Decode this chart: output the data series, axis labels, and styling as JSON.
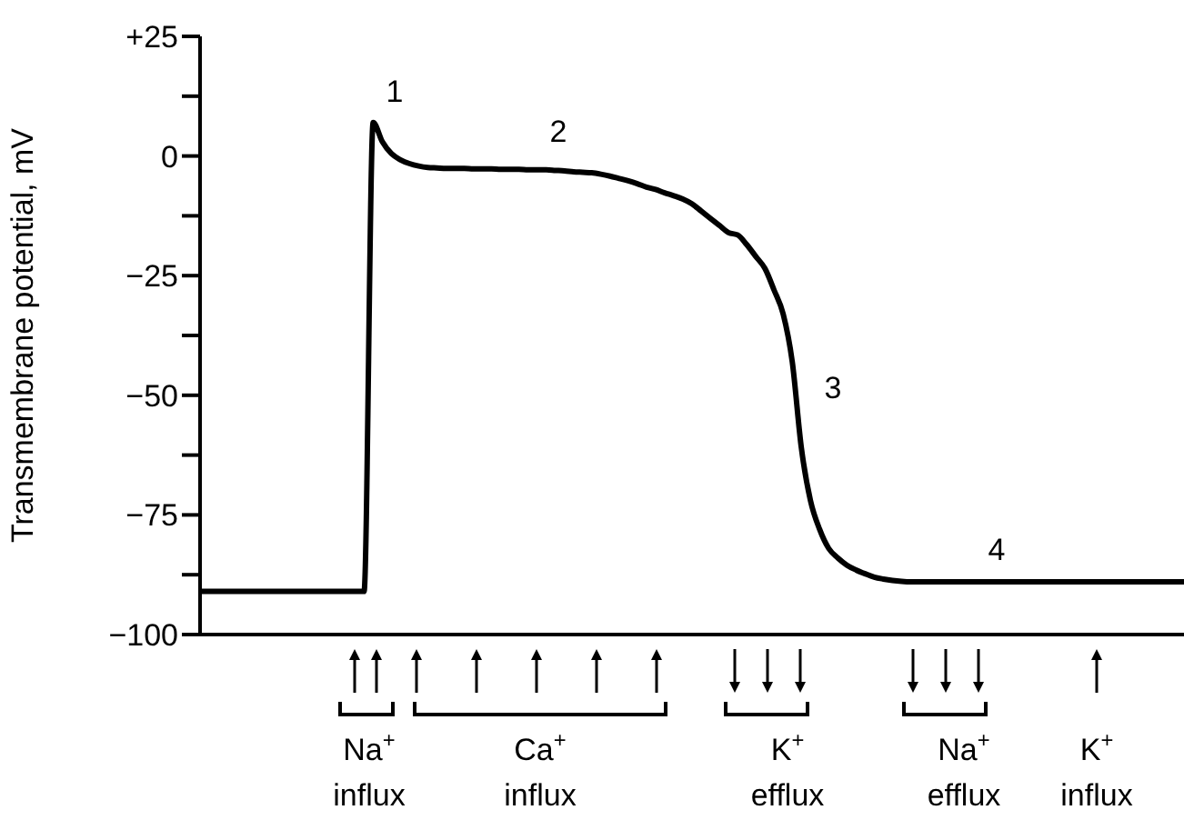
{
  "chart_data": {
    "type": "line",
    "ylabel": "Transmembrane potential, mV",
    "categories": [
      null,
      null,
      null,
      null,
      null,
      null,
      null,
      null,
      null,
      null,
      null,
      null,
      null,
      null,
      null,
      null,
      null,
      null,
      null,
      null,
      null,
      null,
      null,
      null,
      null,
      null,
      null,
      null,
      null,
      null,
      null,
      null,
      null,
      null,
      null,
      null,
      null,
      null,
      null,
      null,
      null,
      null,
      null,
      null,
      null,
      null,
      null,
      null,
      null,
      null,
      null,
      null,
      null,
      null,
      null,
      null,
      null,
      null,
      null,
      null,
      null,
      null,
      null,
      null,
      null,
      null,
      null,
      null,
      null,
      null,
      null,
      null,
      null,
      null,
      null,
      null,
      null,
      null,
      null,
      null,
      null,
      null,
      null,
      null,
      null,
      null,
      null,
      null,
      null,
      null,
      null,
      null,
      null,
      null,
      null,
      null,
      null,
      null,
      null,
      null,
      null,
      null,
      null,
      null,
      null,
      null,
      null,
      null,
      null
    ],
    "series": [
      {
        "color": "#000000",
        "values": [
          -91,
          -91,
          -91,
          -91,
          -91,
          -91,
          -91,
          -91,
          -91,
          -91,
          -91,
          -91,
          -91,
          -91,
          -91,
          -91,
          -91,
          -91,
          -91,
          7,
          3,
          0.5,
          -0.8,
          -1.6,
          -2.1,
          -2.4,
          -2.5,
          -2.6,
          -2.6,
          -2.6,
          -2.7,
          -2.7,
          -2.7,
          -2.8,
          -2.8,
          -2.8,
          -2.9,
          -2.9,
          -2.9,
          -3,
          -3.1,
          -3.3,
          -3.4,
          -3.5,
          -3.8,
          -4.2,
          -4.7,
          -5.2,
          -5.8,
          -6.5,
          -7,
          -7.7,
          -8.3,
          -9,
          -10,
          -11.5,
          -13,
          -14.5,
          -16,
          -16.5,
          -18.5,
          -21,
          -23.5,
          -28,
          -33,
          -43,
          -61,
          -72,
          -78,
          -82,
          -84,
          -85.5,
          -86.5,
          -87.3,
          -88,
          -88.4,
          -88.7,
          -88.9,
          -89,
          -89,
          -89,
          -89,
          -89,
          -89,
          -89,
          -89,
          -89,
          -89,
          -89,
          -89,
          -89,
          -89,
          -89,
          -89,
          -89,
          -89,
          -89,
          -89,
          -89,
          -89,
          -89,
          -89,
          -89,
          -89,
          -89,
          -89,
          -89,
          -89,
          -89
        ]
      }
    ],
    "ylim": [
      -100,
      25
    ],
    "yticks": [
      {
        "value": 25,
        "label": "+25"
      },
      {
        "value": 12.5,
        "label": null
      },
      0,
      {
        "value": -12.5,
        "label": null
      },
      {
        "value": -25,
        "label": "−25"
      },
      {
        "value": -37.5,
        "label": null
      },
      {
        "value": -50,
        "label": "−50"
      },
      {
        "value": -62.5,
        "label": null
      },
      {
        "value": -75,
        "label": "−75"
      },
      {
        "value": -87.5,
        "label": null
      },
      {
        "value": -100,
        "label": "−100"
      }
    ],
    "tick_labels": "y",
    "grid": false,
    "legend": false,
    "marker": "none",
    "line_style": "solid",
    "annotations": [
      "1",
      "2",
      "3",
      "4",
      "Na$^{+}$ influx",
      "Ca$^{+}$ influx",
      "K$^{+}$ efflux",
      "Na$^{+}$ efflux",
      "K$^{+}$ influx"
    ]
  }
}
